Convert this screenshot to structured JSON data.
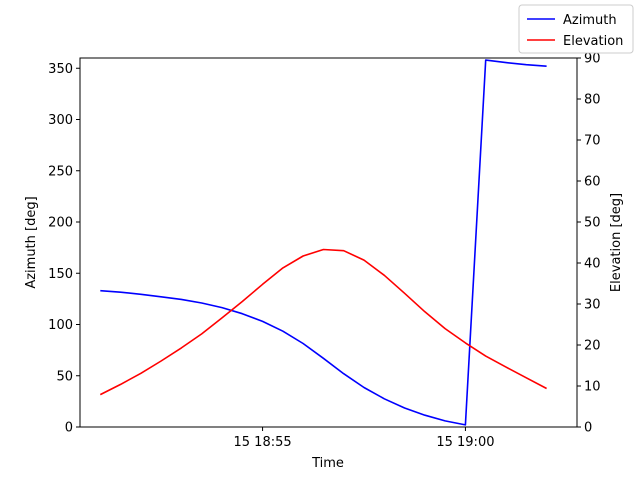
{
  "chart_data": {
    "type": "line",
    "xlabel": "Time",
    "ylabel": "Azimuth [deg]",
    "y2label": "Elevation [deg]",
    "x_ticks": [
      {
        "t": "18:55",
        "label": "15 18:55"
      },
      {
        "t": "19:00",
        "label": "15 19:00"
      }
    ],
    "x_range": [
      "18:50:30",
      "19:02:45"
    ],
    "ylim": [
      0,
      360
    ],
    "y_ticks": [
      0,
      50,
      100,
      150,
      200,
      250,
      300,
      350
    ],
    "y2lim": [
      0,
      90
    ],
    "y2_ticks": [
      0,
      10,
      20,
      30,
      40,
      50,
      60,
      70,
      80,
      90
    ],
    "legend_position": "top-right",
    "grid": false,
    "series": [
      {
        "name": "Azimuth",
        "axis": "left",
        "color": "#0000ff",
        "points": [
          [
            "18:51:00",
            133
          ],
          [
            "18:51:30",
            131.5
          ],
          [
            "18:52:00",
            129.5
          ],
          [
            "18:52:30",
            127
          ],
          [
            "18:53:00",
            124.5
          ],
          [
            "18:53:30",
            121
          ],
          [
            "18:54:00",
            116.5
          ],
          [
            "18:54:30",
            110.5
          ],
          [
            "18:55:00",
            103
          ],
          [
            "18:55:30",
            93.5
          ],
          [
            "18:56:00",
            81.5
          ],
          [
            "18:56:30",
            67
          ],
          [
            "18:57:00",
            52
          ],
          [
            "18:57:30",
            38.5
          ],
          [
            "18:58:00",
            27.5
          ],
          [
            "18:58:30",
            18.5
          ],
          [
            "18:59:00",
            11.5
          ],
          [
            "18:59:30",
            6
          ],
          [
            "19:00:00",
            2
          ],
          [
            "19:00:30",
            358
          ],
          [
            "19:01:00",
            355.5
          ],
          [
            "19:01:30",
            353.5
          ],
          [
            "19:02:00",
            352
          ]
        ]
      },
      {
        "name": "Elevation",
        "axis": "right",
        "color": "#ff0000",
        "points": [
          [
            "18:51:00",
            7.9
          ],
          [
            "18:51:30",
            10.4
          ],
          [
            "18:52:00",
            13.1
          ],
          [
            "18:52:30",
            16.1
          ],
          [
            "18:53:00",
            19.3
          ],
          [
            "18:53:30",
            22.7
          ],
          [
            "18:54:00",
            26.6
          ],
          [
            "18:54:30",
            30.6
          ],
          [
            "18:55:00",
            34.8
          ],
          [
            "18:55:30",
            38.8
          ],
          [
            "18:56:00",
            41.7
          ],
          [
            "18:56:30",
            43.3
          ],
          [
            "18:57:00",
            43.0
          ],
          [
            "18:57:30",
            40.7
          ],
          [
            "18:58:00",
            37.0
          ],
          [
            "18:58:30",
            32.6
          ],
          [
            "18:59:00",
            28.1
          ],
          [
            "18:59:30",
            24.0
          ],
          [
            "19:00:00",
            20.5
          ],
          [
            "19:00:30",
            17.3
          ],
          [
            "19:01:00",
            14.6
          ],
          [
            "19:01:30",
            12.0
          ],
          [
            "19:02:00",
            9.4
          ]
        ]
      }
    ]
  }
}
